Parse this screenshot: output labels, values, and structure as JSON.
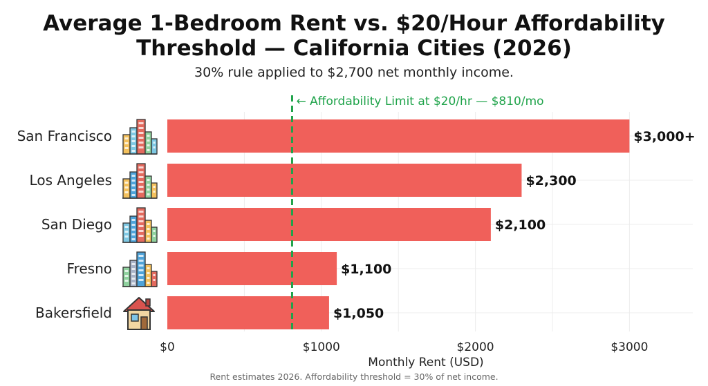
{
  "title_line1": "Average 1-Bedroom Rent vs. $20/Hour Affordability",
  "title_line2": "Threshold — California Cities (2026)",
  "subtitle": "30% rule applied to $2,700 net monthly income.",
  "footnote": "Rent estimates 2026. Affordability threshold = 30% of net income.",
  "chart_data": {
    "type": "bar",
    "orientation": "horizontal",
    "categories": [
      "San Francisco",
      "Los Angeles",
      "San Diego",
      "Fresno",
      "Bakersfield"
    ],
    "values": [
      3000,
      2300,
      2100,
      1100,
      1050
    ],
    "value_labels": [
      "$3,000+",
      "$2,300",
      "$2,100",
      "$1,100",
      "$1,050"
    ],
    "icons": [
      "city-skyline-icon",
      "city-skyline-icon",
      "city-skyline-icon",
      "city-skyline-icon",
      "house-icon"
    ],
    "xlabel": "Monthly Rent (USD)",
    "ylabel": "",
    "xlim": [
      0,
      3400
    ],
    "xticks": [
      0,
      1000,
      2000,
      3000
    ],
    "xtick_labels": [
      "$0",
      "$1000",
      "$2000",
      "$3000"
    ],
    "bar_color": "#f0605a",
    "grid": true,
    "threshold": {
      "value": 810,
      "label": "← Affordability Limit at $20/hr — $810/mo",
      "color": "#1fa34a",
      "style": "dashed"
    }
  }
}
